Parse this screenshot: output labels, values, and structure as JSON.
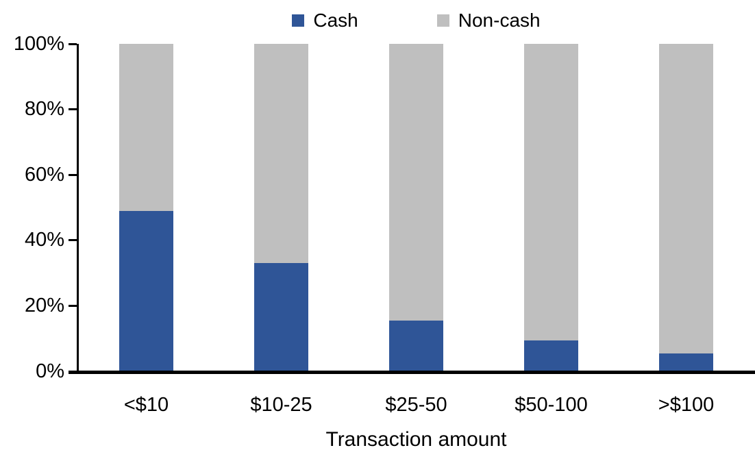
{
  "chart_data": {
    "type": "bar",
    "stacked": true,
    "orientation": "vertical",
    "categories": [
      "<$10",
      "$10-25",
      "$25-50",
      "$50-100",
      ">$100"
    ],
    "series": [
      {
        "name": "Cash",
        "color": "#2F5597",
        "values": [
          49,
          33,
          15.5,
          9.5,
          5.5
        ]
      },
      {
        "name": "Non-cash",
        "color": "#BFBFBF",
        "values": [
          51,
          67,
          84.5,
          90.5,
          94.5
        ]
      }
    ],
    "title": "",
    "xlabel": "Transaction amount",
    "ylabel": "",
    "ylim": [
      0,
      100
    ],
    "yticks": [
      0,
      20,
      40,
      60,
      80,
      100
    ],
    "ytick_labels": [
      "0%",
      "20%",
      "40%",
      "60%",
      "80%",
      "100%"
    ],
    "grid": false,
    "legend_position": "top-center",
    "axis_color": "#000000",
    "background_color": "#FFFFFF"
  }
}
